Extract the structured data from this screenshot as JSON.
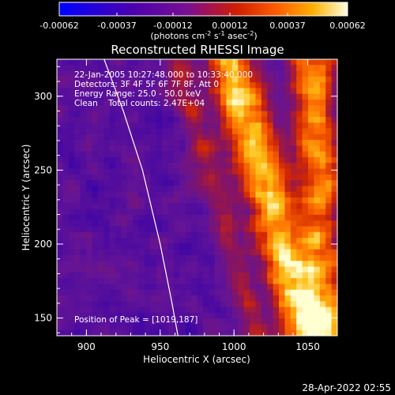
{
  "chart_data": {
    "type": "heatmap",
    "title": "Reconstructed RHESSI Image",
    "xlabel": "Heliocentric X (arcsec)",
    "ylabel": "Heliocentric Y (arcsec)",
    "xlim": [
      880,
      1070
    ],
    "ylim": [
      138,
      325
    ],
    "x_ticks": [
      900,
      950,
      1000,
      1050
    ],
    "y_ticks": [
      150,
      200,
      250,
      300
    ],
    "colorbar": {
      "ticks": [
        "-0.00062",
        "-0.00037",
        "-0.00012",
        "0.00012",
        "0.00037",
        "0.00062"
      ],
      "min": -0.00062,
      "max": 0.00062,
      "units": "(photons cm",
      "units_exp1": "-2",
      "units_s": " s",
      "units_exp2": "-1",
      "units_asec": " asec",
      "units_exp3": "-2",
      "units_close": ")"
    },
    "annotations": [
      "22-Jan-2005 10:27:48.000 to 10:33:40.000",
      "Detectors: 3F 4F 5F 6F 7F 8F, Att 0",
      "Energy Range: 25.0 - 50.0 keV",
      "Clean    Total counts: 2.47E+04"
    ],
    "peak_label": "Position of Peak = [1019,187]",
    "peak": [
      1019,
      187
    ],
    "limb_curve": [
      [
        912,
        325
      ],
      [
        925,
        290
      ],
      [
        938,
        250
      ],
      [
        950,
        200
      ],
      [
        958,
        160
      ],
      [
        962,
        138
      ]
    ],
    "image_dims": [
      48,
      48
    ],
    "timestamp": "28-Apr-2022 02:55"
  }
}
